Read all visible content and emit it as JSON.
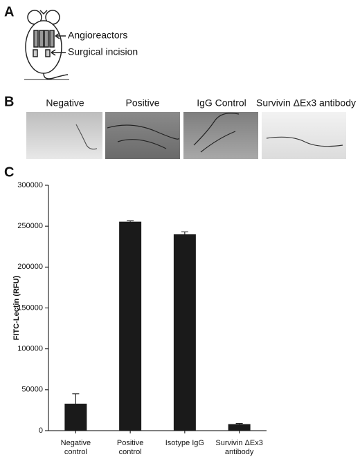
{
  "panel_labels": [
    "A",
    "B",
    "C"
  ],
  "panel_a": {
    "labels": [
      "Angioreactors",
      "Surgical incision"
    ]
  },
  "panel_b": {
    "labels": [
      "Negative",
      "Positive",
      "IgG Control",
      "Survivin ΔEx3 antibody"
    ]
  },
  "chart_data": {
    "type": "bar",
    "ylabel": "FITC-Lectin (RFU)",
    "categories": [
      "Negative\ncontrol",
      "Positive\ncontrol",
      "Isotype IgG",
      "Survivin ΔEx3\nantibody"
    ],
    "values": [
      33000,
      255500,
      240000,
      8000
    ],
    "errors": [
      12000,
      1000,
      3000,
      800
    ],
    "color": "#1a1a1a",
    "ylim": [
      0,
      300000
    ],
    "yticks": [
      0,
      50000,
      100000,
      150000,
      200000,
      250000,
      300000
    ]
  }
}
